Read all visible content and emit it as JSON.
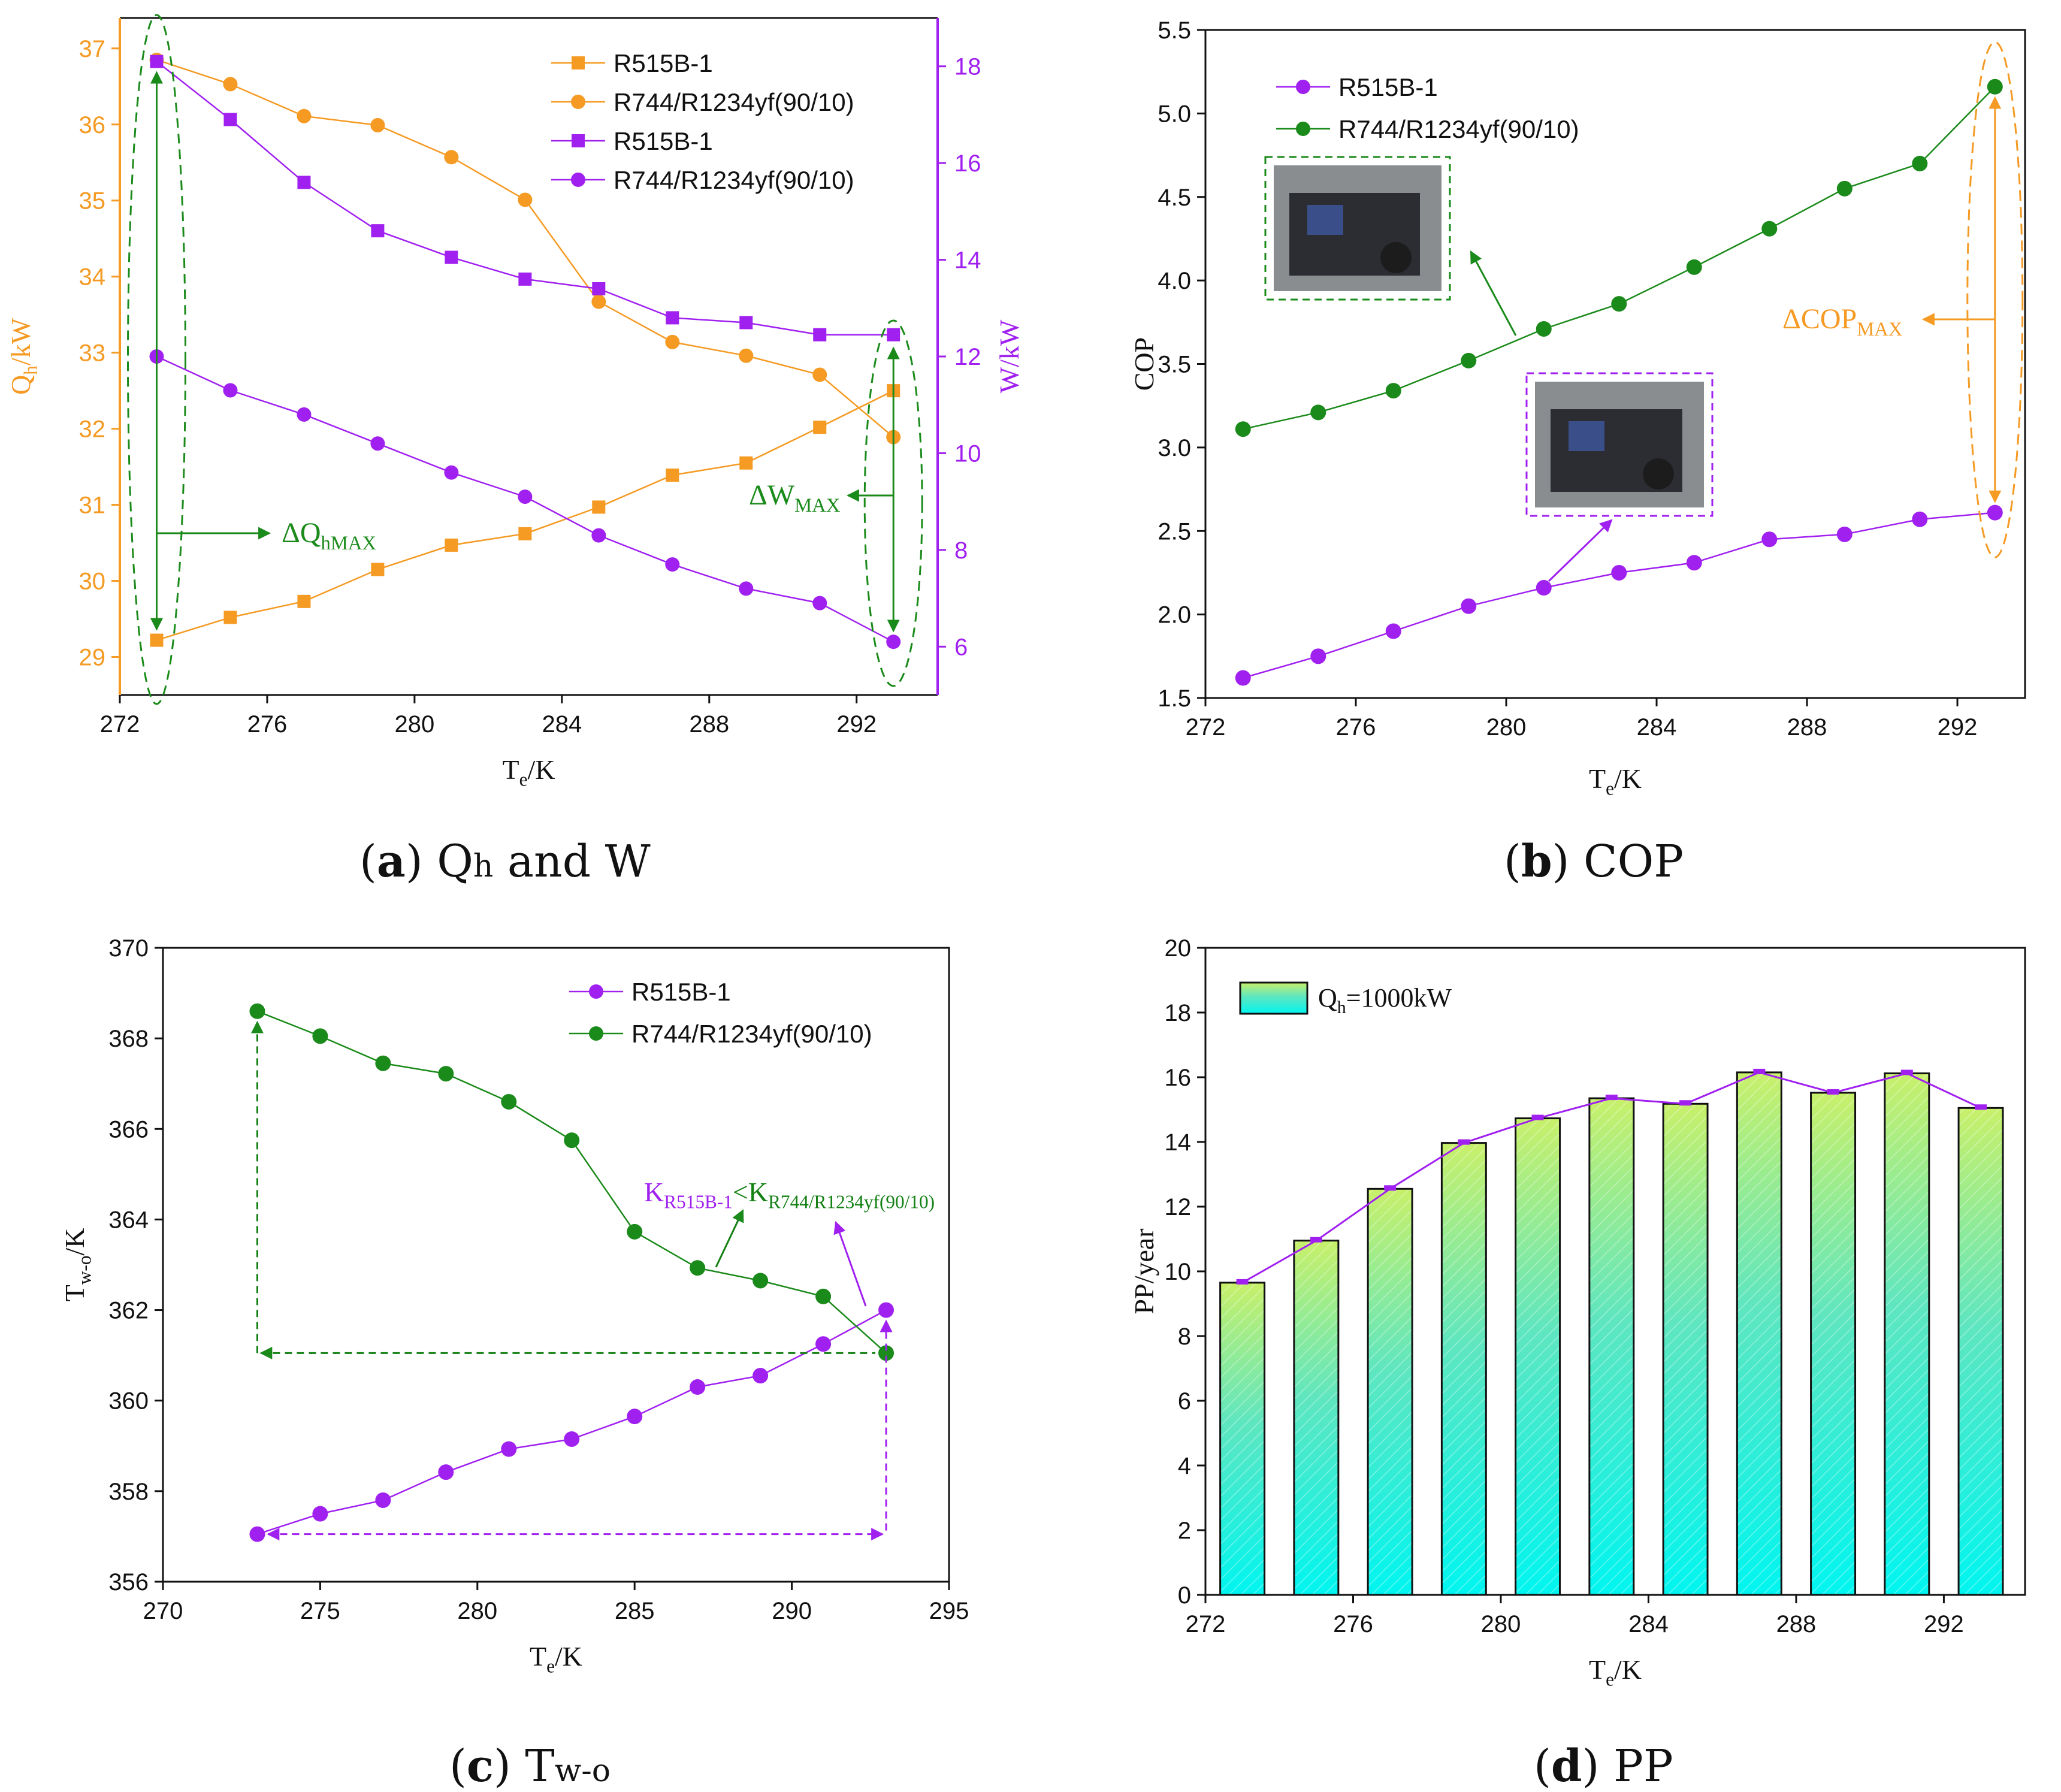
{
  "colors": {
    "orange": "#f59a23",
    "purple": "#a020f0",
    "green": "#1a8a1a",
    "dgreen": "#138013",
    "axis": "#111111"
  },
  "panels": {
    "a": {
      "caption_letter": "a",
      "caption_main": "Q",
      "caption_sub": "h",
      "caption_tail": " and W",
      "xlabel_main": "T",
      "xlabel_sub": "e",
      "xlabel_tail": "/K",
      "ylabel_left_main": "Q",
      "ylabel_left_sub": "h",
      "ylabel_left_tail": "/kW",
      "ylabel_right": "W/kW",
      "annotation_q": "ΔQ",
      "annotation_q_sub": "hMAX",
      "annotation_w": "ΔW",
      "annotation_w_sub": "MAX",
      "legend": [
        "R515B-1",
        "R744/R1234yf(90/10)",
        "R515B-1",
        "R744/R1234yf(90/10)"
      ]
    },
    "b": {
      "caption_letter": "b",
      "caption_tail": " COP",
      "xlabel_main": "T",
      "xlabel_sub": "e",
      "xlabel_tail": "/K",
      "ylabel": "COP",
      "annotation": "ΔCOP",
      "annotation_sub": "MAX",
      "legend": [
        "R515B-1",
        "R744/R1234yf(90/10)"
      ]
    },
    "c": {
      "caption_letter": "c",
      "caption_main": " T",
      "caption_sub": "w-o",
      "xlabel_main": "T",
      "xlabel_sub": "e",
      "xlabel_tail": "/K",
      "ylabel_main": "T",
      "ylabel_sub": "w-o",
      "ylabel_tail": "/K",
      "annotation_k1": "K",
      "annotation_k1_sub": "R515B-1",
      "annotation_lt": "<",
      "annotation_k2": "K",
      "annotation_k2_sub": "R744/R1234yf(90/10)",
      "legend": [
        "R515B-1",
        "R744/R1234yf(90/10)"
      ]
    },
    "d": {
      "caption_letter": "d",
      "caption_tail": " PP",
      "xlabel_main": "T",
      "xlabel_sub": "e",
      "xlabel_tail": "/K",
      "ylabel": "PP/year",
      "legend_main": "Q",
      "legend_sub": "h",
      "legend_tail": "=1000kW"
    }
  },
  "chart_data": [
    {
      "type": "line",
      "id": "a",
      "x": [
        273,
        275,
        277,
        279,
        281,
        283,
        285,
        287,
        289,
        291,
        293
      ],
      "xlim": [
        272,
        294.2
      ],
      "xticks": [
        272,
        276,
        280,
        284,
        288,
        292
      ],
      "ylim_left": [
        28.5,
        37.4
      ],
      "yticks_left": [
        29,
        30,
        31,
        32,
        33,
        34,
        35,
        36,
        37
      ],
      "ylim_right": [
        5,
        19
      ],
      "yticks_right": [
        6,
        8,
        10,
        12,
        14,
        16,
        18
      ],
      "series": [
        {
          "name": "R515B-1",
          "axis": "left",
          "color": "orange",
          "marker": "square",
          "values": [
            29.22,
            29.52,
            29.73,
            30.15,
            30.47,
            30.62,
            30.97,
            31.39,
            31.55,
            32.02,
            32.5
          ]
        },
        {
          "name": "R744/R1234yf(90/10)",
          "axis": "left",
          "color": "orange",
          "marker": "circle",
          "values": [
            36.85,
            36.53,
            36.11,
            35.99,
            35.57,
            35.01,
            33.67,
            33.14,
            32.96,
            32.71,
            31.89
          ]
        },
        {
          "name": "R515B-1",
          "axis": "right",
          "color": "purple",
          "marker": "square",
          "values": [
            18.1,
            16.9,
            15.6,
            14.6,
            14.05,
            13.6,
            13.4,
            12.8,
            12.7,
            12.45,
            12.45
          ]
        },
        {
          "name": "R744/R1234yf(90/10)",
          "axis": "right",
          "color": "purple",
          "marker": "circle",
          "values": [
            12.0,
            11.3,
            10.8,
            10.2,
            9.6,
            9.1,
            8.3,
            7.7,
            7.2,
            6.9,
            6.1
          ]
        }
      ]
    },
    {
      "type": "line",
      "id": "b",
      "x": [
        273,
        275,
        277,
        279,
        281,
        283,
        285,
        287,
        289,
        291,
        293
      ],
      "xlim": [
        272,
        293.8
      ],
      "xticks": [
        272,
        276,
        280,
        284,
        288,
        292
      ],
      "ylim": [
        1.5,
        5.5
      ],
      "yticks": [
        1.5,
        2.0,
        2.5,
        3.0,
        3.5,
        4.0,
        4.5,
        5.0,
        5.5
      ],
      "series": [
        {
          "name": "R515B-1",
          "color": "purple",
          "marker": "circle",
          "values": [
            1.62,
            1.75,
            1.9,
            2.05,
            2.16,
            2.25,
            2.31,
            2.45,
            2.48,
            2.57,
            2.61
          ]
        },
        {
          "name": "R744/R1234yf(90/10)",
          "color": "green",
          "marker": "circle",
          "values": [
            3.11,
            3.21,
            3.34,
            3.52,
            3.71,
            3.86,
            4.08,
            4.31,
            4.55,
            4.7,
            5.16
          ]
        }
      ]
    },
    {
      "type": "line",
      "id": "c",
      "x": [
        273,
        275,
        277,
        279,
        281,
        283,
        285,
        287,
        289,
        291,
        293
      ],
      "xlim": [
        270,
        295
      ],
      "xticks": [
        270,
        275,
        280,
        285,
        290,
        295
      ],
      "ylim": [
        356,
        370
      ],
      "yticks": [
        356,
        358,
        360,
        362,
        364,
        366,
        368,
        370
      ],
      "series": [
        {
          "name": "R515B-1",
          "color": "purple",
          "marker": "circle",
          "values": [
            357.05,
            357.5,
            357.8,
            358.42,
            358.93,
            359.15,
            359.65,
            360.3,
            360.55,
            361.25,
            362.0
          ]
        },
        {
          "name": "R744/R1234yf(90/10)",
          "color": "green",
          "marker": "circle",
          "values": [
            368.6,
            368.05,
            367.45,
            367.22,
            366.6,
            365.75,
            363.73,
            362.93,
            362.65,
            362.3,
            361.05
          ]
        }
      ]
    },
    {
      "type": "bar",
      "id": "d",
      "x": [
        273,
        275,
        277,
        279,
        281,
        283,
        285,
        287,
        289,
        291,
        293
      ],
      "xlim": [
        272,
        294.2
      ],
      "xticks": [
        272,
        276,
        280,
        284,
        288,
        292
      ],
      "ylim": [
        0,
        20
      ],
      "yticks": [
        0,
        2,
        4,
        6,
        8,
        10,
        12,
        14,
        16,
        18,
        20
      ],
      "series": [
        {
          "name": "Qh=1000kW",
          "values": [
            9.65,
            10.95,
            12.55,
            13.97,
            14.73,
            15.35,
            15.18,
            16.15,
            15.52,
            16.12,
            15.05
          ]
        }
      ]
    }
  ]
}
